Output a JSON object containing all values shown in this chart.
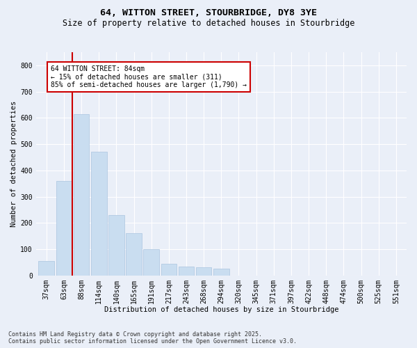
{
  "title": "64, WITTON STREET, STOURBRIDGE, DY8 3YE",
  "subtitle": "Size of property relative to detached houses in Stourbridge",
  "xlabel": "Distribution of detached houses by size in Stourbridge",
  "ylabel": "Number of detached properties",
  "property_label": "64 WITTON STREET: 84sqm",
  "annotation_line1": "← 15% of detached houses are smaller (311)",
  "annotation_line2": "85% of semi-detached houses are larger (1,790) →",
  "bar_categories": [
    "37sqm",
    "63sqm",
    "88sqm",
    "114sqm",
    "140sqm",
    "165sqm",
    "191sqm",
    "217sqm",
    "243sqm",
    "268sqm",
    "294sqm",
    "320sqm",
    "345sqm",
    "371sqm",
    "397sqm",
    "422sqm",
    "448sqm",
    "474sqm",
    "500sqm",
    "525sqm",
    "551sqm"
  ],
  "bar_values": [
    55,
    360,
    615,
    470,
    230,
    160,
    100,
    45,
    35,
    30,
    25,
    0,
    0,
    0,
    0,
    0,
    0,
    0,
    0,
    0,
    0
  ],
  "bar_color": "#c9ddf0",
  "bar_edgecolor": "#aac4e0",
  "vline_color": "#cc0000",
  "annotation_box_edgecolor": "#cc0000",
  "background_color": "#eaeff8",
  "plot_bg_color": "#eaeff8",
  "ylim": [
    0,
    850
  ],
  "yticks": [
    0,
    100,
    200,
    300,
    400,
    500,
    600,
    700,
    800
  ],
  "footer_line1": "Contains HM Land Registry data © Crown copyright and database right 2025.",
  "footer_line2": "Contains public sector information licensed under the Open Government Licence v3.0.",
  "title_fontsize": 9.5,
  "subtitle_fontsize": 8.5,
  "axis_label_fontsize": 7.5,
  "tick_fontsize": 7,
  "annotation_fontsize": 7,
  "footer_fontsize": 6
}
